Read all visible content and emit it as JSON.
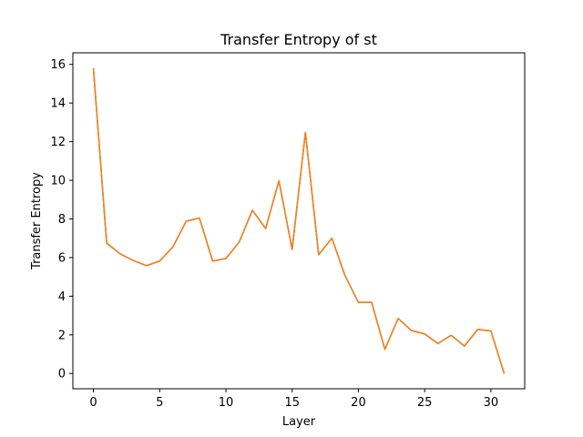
{
  "chart_data": {
    "type": "line",
    "title": "Transfer Entropy of st",
    "xlabel": "Layer",
    "ylabel": "Transfer Entropy",
    "xlim": [
      -1.55,
      32.55
    ],
    "ylim": [
      -0.79,
      16.6
    ],
    "xticks": [
      0,
      5,
      10,
      15,
      20,
      25,
      30
    ],
    "yticks": [
      0,
      2,
      4,
      6,
      8,
      10,
      12,
      14,
      16
    ],
    "grid": false,
    "x": [
      0,
      1,
      2,
      3,
      4,
      5,
      6,
      7,
      8,
      9,
      10,
      11,
      12,
      13,
      14,
      15,
      16,
      17,
      18,
      19,
      20,
      21,
      22,
      23,
      24,
      25,
      26,
      27,
      28,
      29,
      30,
      31
    ],
    "series": [
      {
        "color": "#1f77b4",
        "values": [
          15.8,
          6.75,
          6.2,
          5.85,
          5.58,
          5.82,
          6.55,
          7.88,
          8.05,
          5.82,
          5.95,
          6.8,
          8.45,
          7.5,
          9.98,
          6.42,
          12.48,
          6.15,
          7.0,
          5.05,
          3.68,
          3.68,
          1.25,
          2.85,
          2.22,
          2.05,
          1.55,
          1.98,
          1.42,
          2.28,
          2.2,
          0.0
        ]
      },
      {
        "color": "#ff7f0e",
        "values": [
          15.8,
          6.75,
          6.2,
          5.85,
          5.58,
          5.82,
          6.55,
          7.88,
          8.05,
          5.82,
          5.95,
          6.8,
          8.45,
          7.5,
          9.98,
          6.42,
          12.48,
          6.15,
          7.0,
          5.05,
          3.68,
          3.68,
          1.25,
          2.85,
          2.22,
          2.05,
          1.55,
          1.98,
          1.42,
          2.28,
          2.2,
          0.0
        ]
      }
    ]
  }
}
